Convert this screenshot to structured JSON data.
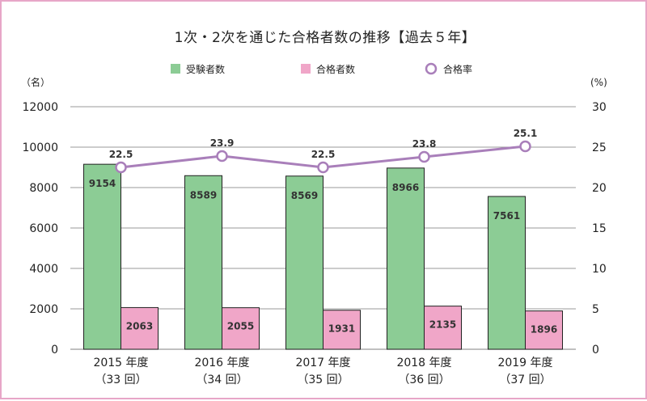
{
  "chart_data": {
    "type": "bar+line",
    "title": "1次・2次を通じた合格者数の推移【過去５年】",
    "categories": [
      "2015 年度",
      "2016 年度",
      "2017 年度",
      "2018 年度",
      "2019 年度"
    ],
    "subcategories": [
      "（33 回）",
      "（34 回）",
      "（35 回）",
      "（36 回）",
      "（37 回）"
    ],
    "series": [
      {
        "name": "受験者数",
        "type": "bar",
        "axis": "left",
        "color": "#8ccc95",
        "values": [
          9154,
          8589,
          8569,
          8966,
          7561
        ]
      },
      {
        "name": "合格者数",
        "type": "bar",
        "axis": "left",
        "color": "#f0a6c8",
        "values": [
          2063,
          2055,
          1931,
          2135,
          1896
        ]
      },
      {
        "name": "合格率",
        "type": "line",
        "axis": "right",
        "color": "#a97fba",
        "values": [
          22.5,
          23.9,
          22.5,
          23.8,
          25.1
        ]
      }
    ],
    "left_axis": {
      "label": "（名）",
      "ticks": [
        12000,
        10000,
        8000,
        6000,
        4000,
        2000,
        0
      ],
      "range": [
        0,
        12000
      ]
    },
    "right_axis": {
      "label": "(%)",
      "ticks": [
        30,
        25,
        20,
        15,
        10,
        5,
        0
      ],
      "range": [
        0,
        30
      ]
    },
    "grid": true,
    "legend_position": "top-center"
  }
}
